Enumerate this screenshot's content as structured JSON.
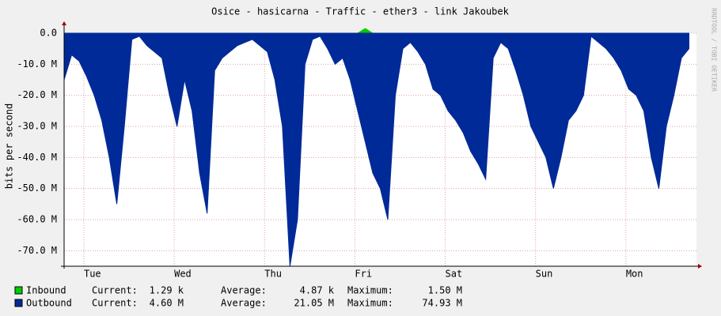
{
  "chart_data": {
    "type": "area",
    "title": "Osice - hasicarna - Traffic - ether3 - link Jakoubek",
    "y_label": "bits per second",
    "watermark": "RRDTOOL / TOBI OETIKER",
    "x": [
      0,
      2,
      4,
      6,
      8,
      10,
      12,
      14,
      16,
      18,
      20,
      22,
      24,
      26,
      28,
      30,
      32,
      34,
      36,
      38,
      40,
      42,
      44,
      46,
      48,
      50,
      52,
      54,
      56,
      58,
      60,
      62,
      64,
      66,
      68,
      70,
      72,
      74,
      76,
      78,
      80,
      82,
      84,
      86,
      88,
      90,
      92,
      94,
      96,
      98,
      100,
      102,
      104,
      106,
      108,
      110,
      112,
      114,
      116,
      118,
      120,
      122,
      124,
      126,
      128,
      130,
      132,
      134,
      136,
      138,
      140,
      142,
      144,
      146,
      148,
      150,
      152,
      154,
      156,
      158,
      160,
      162,
      164,
      166
    ],
    "xlim": [
      0,
      168
    ],
    "xticks": [
      {
        "value": 5.25,
        "label": "Tue"
      },
      {
        "value": 29.25,
        "label": "Wed"
      },
      {
        "value": 53.25,
        "label": "Thu"
      },
      {
        "value": 77.25,
        "label": "Fri"
      },
      {
        "value": 101.25,
        "label": "Sat"
      },
      {
        "value": 125.25,
        "label": "Sun"
      },
      {
        "value": 149.25,
        "label": "Mon"
      }
    ],
    "ylim": [
      -75,
      0
    ],
    "yticks": [
      {
        "value": 0,
        "label": "0.0"
      },
      {
        "value": -10,
        "label": "-10.0 M"
      },
      {
        "value": -20,
        "label": "-20.0 M"
      },
      {
        "value": -30,
        "label": "-30.0 M"
      },
      {
        "value": -40,
        "label": "-40.0 M"
      },
      {
        "value": -50,
        "label": "-50.0 M"
      },
      {
        "value": -60,
        "label": "-60.0 M"
      },
      {
        "value": -70,
        "label": "-70.0 M"
      }
    ],
    "grid": true,
    "legend_labels": [
      "Current:",
      "Average:",
      "Maximum:"
    ],
    "series": [
      {
        "name": "Inbound",
        "color": "#00cc00",
        "current": "1.29 k",
        "average": "4.87 k",
        "maximum": "1.50 M",
        "values": [
          0,
          0,
          0,
          0,
          0,
          0,
          0,
          0,
          0,
          0,
          0,
          0,
          0,
          0,
          0,
          0,
          0,
          0,
          0,
          0,
          0,
          0,
          0,
          0,
          0,
          0,
          0,
          0,
          0,
          0,
          0,
          0,
          0,
          0,
          0,
          0,
          0,
          0,
          0,
          0,
          1.5,
          0,
          0,
          0,
          0,
          0,
          0,
          0,
          0,
          0,
          0,
          0,
          0,
          0,
          0,
          0,
          0,
          0,
          0,
          0,
          0,
          0,
          0,
          0,
          0,
          0,
          0,
          0,
          0,
          0,
          0,
          0,
          0,
          0,
          0,
          0,
          0,
          0,
          0,
          0,
          0,
          0,
          0,
          0
        ]
      },
      {
        "name": "Outbound",
        "color": "#002a97",
        "current": "4.60 M",
        "average": "21.05 M",
        "maximum": "74.93 M",
        "values": [
          -15,
          -7,
          -9,
          -14,
          -20,
          -28,
          -40,
          -55,
          -30,
          -2,
          -1,
          -4,
          -6,
          -8,
          -20,
          -30,
          -15,
          -25,
          -45,
          -58,
          -12,
          -8,
          -6,
          -4,
          -3,
          -2,
          -4,
          -6,
          -15,
          -30,
          -75,
          -60,
          -10,
          -2,
          -1,
          -5,
          -10,
          -8,
          -15,
          -25,
          -35,
          -45,
          -50,
          -60,
          -20,
          -5,
          -3,
          -6,
          -10,
          -18,
          -20,
          -25,
          -28,
          -32,
          -38,
          -42,
          -47,
          -8,
          -3,
          -5,
          -12,
          -20,
          -30,
          -35,
          -40,
          -50,
          -40,
          -28,
          -25,
          -20,
          -1,
          -3,
          -5,
          -8,
          -12,
          -18,
          -20,
          -25,
          -40,
          -50,
          -30,
          -20,
          -8,
          -5
        ]
      }
    ]
  }
}
